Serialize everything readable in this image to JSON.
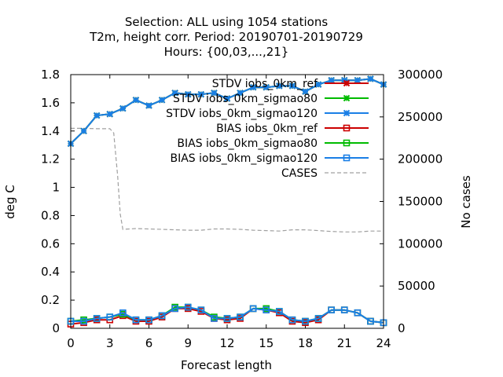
{
  "chart_data": {
    "type": "line",
    "title_lines": [
      "Selection: ALL using  1054 stations",
      "T2m, height corr.   Period: 20190701-20190729",
      "Hours: {00,03,...,21}"
    ],
    "xlabel": "Forecast length",
    "ylabel": "deg C",
    "y2label": "No cases",
    "xlim": [
      0,
      24
    ],
    "ylim": [
      0,
      1.8
    ],
    "y2lim": [
      0,
      300000
    ],
    "xticks": [
      "0",
      "3",
      "6",
      "9",
      "12",
      "15",
      "18",
      "21",
      "24"
    ],
    "yticks": [
      "0",
      "0.2",
      "0.4",
      "0.6",
      "0.8",
      "1",
      "1.2",
      "1.4",
      "1.6",
      "1.8"
    ],
    "y2ticks": [
      "0",
      "50000",
      "100000",
      "150000",
      "200000",
      "250000",
      "300000"
    ],
    "legend_position": "top-right",
    "x": [
      0,
      1,
      2,
      3,
      4,
      5,
      6,
      7,
      8,
      9,
      10,
      11,
      12,
      13,
      14,
      15,
      16,
      17,
      18,
      19,
      20,
      21,
      22,
      23,
      24
    ],
    "series": [
      {
        "name": "STDV iobs_0km_ref",
        "axis": "y1",
        "color": "#cc0000",
        "marker": "x",
        "dash": "solid",
        "values": [
          1.31,
          1.4,
          1.51,
          1.52,
          1.56,
          1.62,
          1.58,
          1.62,
          1.67,
          1.66,
          1.66,
          1.67,
          1.63,
          1.67,
          1.71,
          1.71,
          1.72,
          1.72,
          1.68,
          1.73,
          1.76,
          1.76,
          1.76,
          1.77,
          1.73
        ]
      },
      {
        "name": "STDV iobs_0km_sigmao80",
        "axis": "y1",
        "color": "#00bb00",
        "marker": "x",
        "dash": "solid",
        "values": [
          1.31,
          1.4,
          1.51,
          1.52,
          1.56,
          1.62,
          1.58,
          1.62,
          1.67,
          1.66,
          1.66,
          1.67,
          1.63,
          1.67,
          1.71,
          1.71,
          1.72,
          1.72,
          1.68,
          1.73,
          1.76,
          1.76,
          1.76,
          1.77,
          1.73
        ]
      },
      {
        "name": "STDV iobs_0km_sigmao120",
        "axis": "y1",
        "color": "#1a7fe6",
        "marker": "x",
        "dash": "solid",
        "values": [
          1.31,
          1.4,
          1.51,
          1.52,
          1.56,
          1.62,
          1.58,
          1.62,
          1.67,
          1.66,
          1.66,
          1.67,
          1.63,
          1.67,
          1.71,
          1.71,
          1.72,
          1.72,
          1.68,
          1.73,
          1.76,
          1.76,
          1.76,
          1.77,
          1.73
        ]
      },
      {
        "name": "BIAS iobs_0km_ref",
        "axis": "y1",
        "color": "#cc0000",
        "marker": "square",
        "dash": "solid",
        "values": [
          0.03,
          0.04,
          0.06,
          0.06,
          0.09,
          0.05,
          0.05,
          0.08,
          0.14,
          0.14,
          0.12,
          0.07,
          0.06,
          0.07,
          0.14,
          0.13,
          0.11,
          0.05,
          0.04,
          0.06,
          0.13,
          0.13,
          0.11,
          0.05,
          0.04
        ]
      },
      {
        "name": "BIAS iobs_0km_sigmao80",
        "axis": "y1",
        "color": "#00bb00",
        "marker": "square",
        "dash": "solid",
        "values": [
          0.05,
          0.06,
          0.07,
          0.08,
          0.1,
          0.06,
          0.06,
          0.09,
          0.15,
          0.15,
          0.13,
          0.08,
          0.07,
          0.08,
          0.14,
          0.14,
          0.12,
          0.06,
          0.05,
          0.07,
          0.13,
          0.13,
          0.11,
          0.05,
          0.04
        ]
      },
      {
        "name": "BIAS iobs_0km_sigmao120",
        "axis": "y1",
        "color": "#1a7fe6",
        "marker": "square",
        "dash": "solid",
        "values": [
          0.05,
          0.05,
          0.07,
          0.08,
          0.11,
          0.06,
          0.06,
          0.09,
          0.14,
          0.15,
          0.13,
          0.07,
          0.07,
          0.08,
          0.14,
          0.13,
          0.12,
          0.06,
          0.05,
          0.07,
          0.13,
          0.13,
          0.11,
          0.05,
          0.04
        ]
      },
      {
        "name": "CASES",
        "axis": "y2",
        "color": "#a0a0a0",
        "marker": "none",
        "dash": "dashed",
        "x": [
          0,
          1,
          2,
          3,
          3.3,
          3.6,
          3.8,
          4,
          5,
          6,
          7,
          8,
          9,
          10,
          11,
          12,
          13,
          14,
          15,
          16,
          17,
          18,
          19,
          20,
          21,
          22,
          23,
          24
        ],
        "values": [
          236500,
          236500,
          236000,
          236000,
          231000,
          180000,
          135000,
          117000,
          118000,
          117500,
          117000,
          116500,
          116000,
          116000,
          117500,
          117500,
          117000,
          116000,
          115500,
          115000,
          116500,
          116500,
          115500,
          114500,
          114000,
          114000,
          115000,
          115000
        ]
      }
    ]
  }
}
